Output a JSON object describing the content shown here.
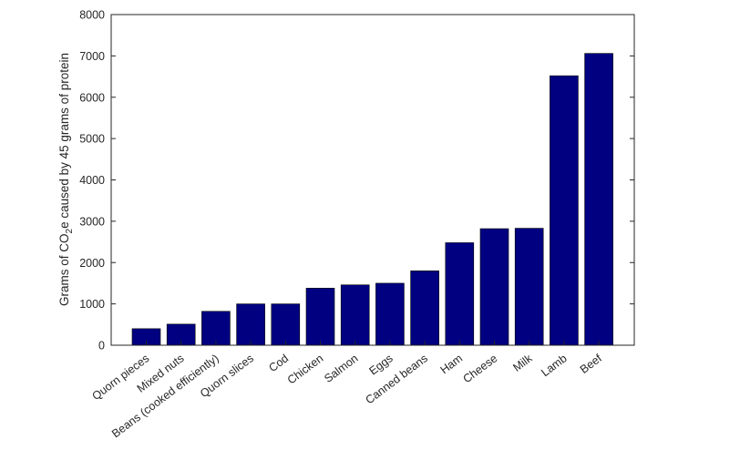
{
  "chart_data": {
    "type": "bar",
    "title": "",
    "xlabel": "",
    "ylabel": {
      "prefix": "Grams of CO",
      "subscript": "2",
      "suffix": "e caused by 45 grams of protein"
    },
    "ylim": [
      0,
      8000
    ],
    "yticks": [
      0,
      1000,
      2000,
      3000,
      4000,
      5000,
      6000,
      7000,
      8000
    ],
    "grid": false,
    "bar_color": "#000080",
    "categories": [
      "Quorn pieces",
      "Mixed nuts",
      "Beans (cooked efficiently)",
      "Quorn slices",
      "Cod",
      "Chicken",
      "Salmon",
      "Eggs",
      "Canned beans",
      "Ham",
      "Cheese",
      "Milk",
      "Lamb",
      "Beef"
    ],
    "values": [
      400,
      510,
      820,
      1000,
      1000,
      1380,
      1460,
      1500,
      1800,
      2480,
      2820,
      2830,
      6520,
      7060
    ]
  }
}
